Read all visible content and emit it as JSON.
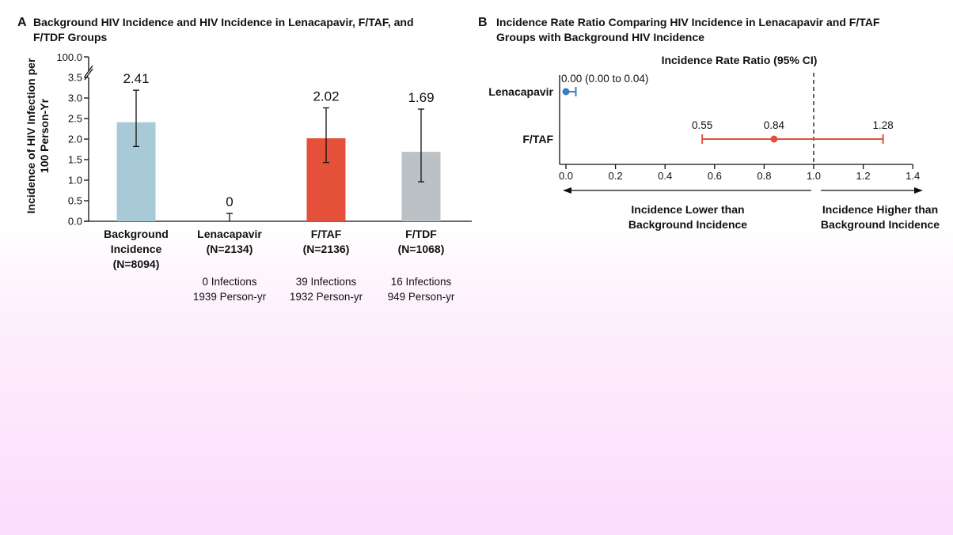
{
  "chart_data": [
    {
      "type": "bar",
      "panel_label": "A",
      "title_lines": [
        "Background HIV Incidence and HIV Incidence in Lenacapavir, F/TAF, and",
        "F/TDF Groups"
      ],
      "ylabel_lines": [
        "Incidence of HIV Infection per",
        "100 Person-Yr"
      ],
      "ylim": [
        0,
        3.5
      ],
      "yticks": [
        "0.0",
        "0.5",
        "1.0",
        "1.5",
        "2.0",
        "2.5",
        "3.0",
        "3.5"
      ],
      "ytick_values": [
        0,
        0.5,
        1.0,
        1.5,
        2.0,
        2.5,
        3.0,
        3.5
      ],
      "axis_break_tick": "100.0",
      "categories": [
        {
          "name_lines": [
            "Background",
            "Incidence",
            "(N=8094)"
          ],
          "value": 2.41,
          "label": "2.41",
          "ci": [
            1.82,
            3.19
          ],
          "color": "#a7cad6",
          "detail_lines": []
        },
        {
          "name_lines": [
            "Lenacapavir",
            "(N=2134)"
          ],
          "value": 0,
          "label": "0",
          "ci": [
            0,
            0.19
          ],
          "color": "#a7cad6",
          "detail_lines": [
            "0 Infections",
            "1939 Person-yr"
          ]
        },
        {
          "name_lines": [
            "F/TAF",
            "(N=2136)"
          ],
          "value": 2.02,
          "label": "2.02",
          "ci": [
            1.43,
            2.76
          ],
          "color": "#e4503a",
          "detail_lines": [
            "39 Infections",
            "1932 Person-yr"
          ]
        },
        {
          "name_lines": [
            "F/TDF",
            "(N=1068)"
          ],
          "value": 1.69,
          "label": "1.69",
          "ci": [
            0.96,
            2.73
          ],
          "color": "#bcc1c5",
          "detail_lines": [
            "16 Infections",
            "949 Person-yr"
          ]
        }
      ]
    },
    {
      "type": "scatter",
      "subtype": "forest",
      "panel_label": "B",
      "title_lines": [
        "Incidence Rate Ratio Comparing HIV Incidence in Lenacapavir and F/TAF",
        "Groups with Background HIV Incidence"
      ],
      "xlabel": "Incidence Rate Ratio (95% CI)",
      "xlim": [
        0,
        1.4
      ],
      "xticks": [
        "0.0",
        "0.2",
        "0.4",
        "0.6",
        "0.8",
        "1.0",
        "1.2",
        "1.4"
      ],
      "xtick_values": [
        0,
        0.2,
        0.4,
        0.6,
        0.8,
        1.0,
        1.2,
        1.4
      ],
      "reference_line": 1.0,
      "rows": [
        {
          "name": "Lenacapavir",
          "estimate": 0.0,
          "ci": [
            0.0,
            0.04
          ],
          "annotation": "0.00 (0.00 to 0.04)",
          "color": "#3a7cc0"
        },
        {
          "name": "F/TAF",
          "estimate": 0.84,
          "ci": [
            0.55,
            1.28
          ],
          "labels": [
            "0.55",
            "0.84",
            "1.28"
          ],
          "color": "#e4503a"
        }
      ],
      "arrow_left_lines": [
        "Incidence Lower than",
        "Background Incidence"
      ],
      "arrow_right_lines": [
        "Incidence Higher than",
        "Background Incidence"
      ]
    }
  ]
}
